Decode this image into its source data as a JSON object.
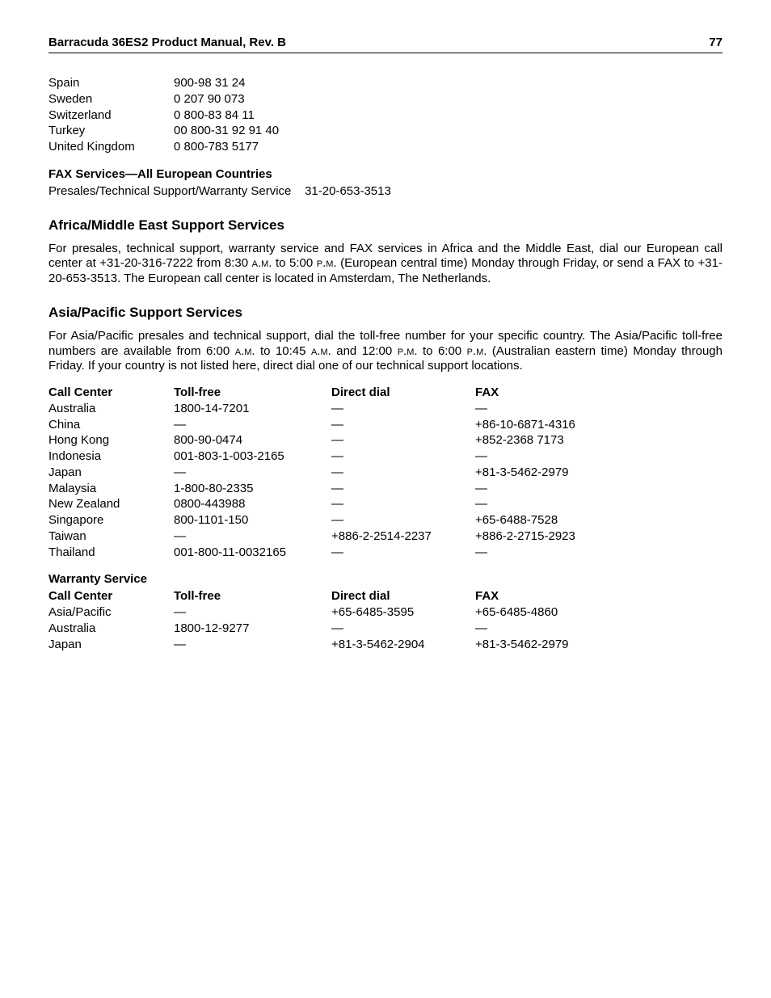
{
  "header": {
    "title": "Barracuda 36ES2 Product Manual, Rev. B",
    "page": "77"
  },
  "europe_phones": {
    "rows": [
      {
        "country": "Spain",
        "number": "900-98 31 24"
      },
      {
        "country": "Sweden",
        "number": "0 207 90 073"
      },
      {
        "country": "Switzerland",
        "number": "0 800-83 84 11"
      },
      {
        "country": "Turkey",
        "number": "00 800-31 92 91 40"
      },
      {
        "country": "United Kingdom",
        "number": "0 800-783 5177"
      }
    ]
  },
  "fax_heading": "FAX Services—All European Countries",
  "fax_line_label": "Presales/Technical Support/Warranty Service",
  "fax_line_number": "31-20-653-3513",
  "africa_heading": "Africa/Middle East Support Services",
  "africa_para_1": "For presales, technical support, warranty service and FAX services in Africa and the Middle East, dial our European call center at +31-20-316-7222 from 8:30 ",
  "africa_para_2": " to 5:00 ",
  "africa_para_3": " (European central time) Monday through Friday, or send a FAX to +31-20-653-3513. The European call center is located in Amsterdam, The Netherlands.",
  "am": "a.m.",
  "pm": "p.m.",
  "asia_heading": "Asia/Pacific Support Services",
  "asia_para_1": "For Asia/Pacific presales and technical support, dial the toll-free number for your specific country. The Asia/Pacific toll-free numbers are available from 6:00 ",
  "asia_para_2": " to 10:45 ",
  "asia_para_3": " and 12:00 ",
  "asia_para_4": " to 6:00 ",
  "asia_para_5": " (Australian eastern time) Monday through Friday. If your country is not listed here, direct dial one of our technical support locations.",
  "table_headers": {
    "c1": "Call Center",
    "c2": "Toll-free",
    "c3": "Direct dial",
    "c4": "FAX"
  },
  "asia_rows": [
    {
      "c1": "Australia",
      "c2": "1800-14-7201",
      "c3": "—",
      "c4": "—"
    },
    {
      "c1": "China",
      "c2": "—",
      "c3": "—",
      "c4": "+86-10-6871-4316"
    },
    {
      "c1": "Hong Kong",
      "c2": "800-90-0474",
      "c3": "—",
      "c4": "+852-2368 7173"
    },
    {
      "c1": "Indonesia",
      "c2": "001-803-1-003-2165",
      "c3": "—",
      "c4": "—"
    },
    {
      "c1": "Japan",
      "c2": "—",
      "c3": "—",
      "c4": "+81-3-5462-2979"
    },
    {
      "c1": "Malaysia",
      "c2": "1-800-80-2335",
      "c3": "—",
      "c4": "—"
    },
    {
      "c1": "New Zealand",
      "c2": "0800-443988",
      "c3": "—",
      "c4": "—"
    },
    {
      "c1": "Singapore",
      "c2": "800-1101-150",
      "c3": "—",
      "c4": "+65-6488-7528"
    },
    {
      "c1": "Taiwan",
      "c2": "—",
      "c3": "+886-2-2514-2237",
      "c4": "+886-2-2715-2923"
    },
    {
      "c1": "Thailand",
      "c2": "001-800-11-0032165",
      "c3": "—",
      "c4": "—"
    }
  ],
  "warranty_heading": "Warranty Service",
  "warranty_rows": [
    {
      "c1": "Asia/Pacific",
      "c2": "—",
      "c3": "+65-6485-3595",
      "c4": "+65-6485-4860"
    },
    {
      "c1": "Australia",
      "c2": "1800-12-9277",
      "c3": "—",
      "c4": "—"
    },
    {
      "c1": "Japan",
      "c2": "—",
      "c3": "+81-3-5462-2904",
      "c4": "+81-3-5462-2979"
    }
  ]
}
